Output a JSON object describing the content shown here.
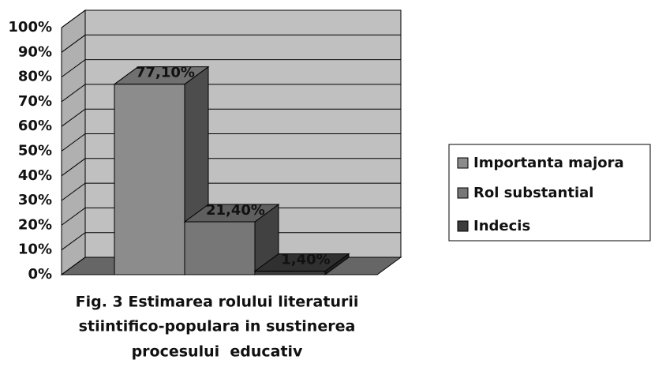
{
  "chart_data": {
    "type": "bar3d",
    "title": [
      "Fig. 3 Estimarea rolului literaturii",
      "stiintifico-populara in sustinerea",
      "procesului  educativ"
    ],
    "categories": [
      null
    ],
    "series": [
      {
        "name": "Importanta majora",
        "color": "#8c8c8c",
        "values": [
          77.1
        ],
        "value_labels": [
          "77,10%"
        ]
      },
      {
        "name": "Rol substantial",
        "color": "#777777",
        "values": [
          21.4
        ],
        "value_labels": [
          "21,40%"
        ]
      },
      {
        "name": "Indecis",
        "color": "#3c3c3c",
        "values": [
          1.4
        ],
        "value_labels": [
          "1,40%"
        ]
      }
    ],
    "ylim": [
      0,
      100
    ],
    "yticks": [
      {
        "value": 0,
        "label": "0%"
      },
      {
        "value": 10,
        "label": "10%"
      },
      {
        "value": 20,
        "label": "20%"
      },
      {
        "value": 30,
        "label": "30%"
      },
      {
        "value": 40,
        "label": "40%"
      },
      {
        "value": 50,
        "label": "50%"
      },
      {
        "value": 60,
        "label": "60%"
      },
      {
        "value": 70,
        "label": "70%"
      },
      {
        "value": 80,
        "label": "80%"
      },
      {
        "value": 90,
        "label": "90%"
      },
      {
        "value": 100,
        "label": "100%"
      }
    ],
    "grid": true,
    "legend": "right"
  }
}
